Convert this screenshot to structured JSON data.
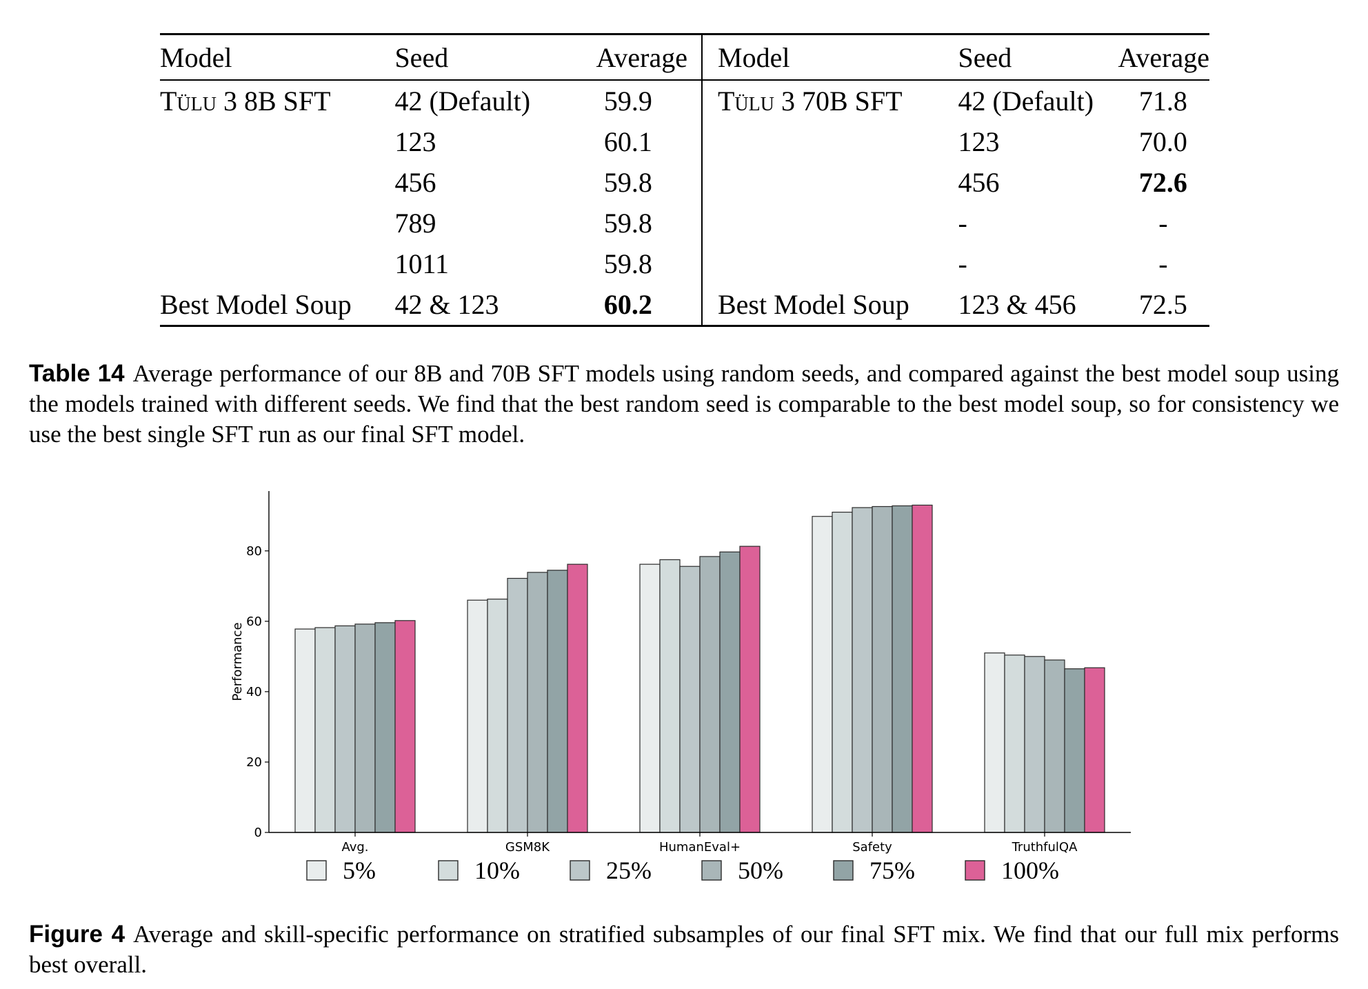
{
  "table": {
    "headers": [
      "Model",
      "Seed",
      "Average",
      "Model",
      "Seed",
      "Average"
    ],
    "rows": [
      [
        "Tülu 3 8B SFT",
        "42 (Default)",
        "59.9",
        "Tülu 3 70B SFT",
        "42 (Default)",
        "71.8"
      ],
      [
        "",
        "123",
        "60.1",
        "",
        "123",
        "70.0"
      ],
      [
        "",
        "456",
        "59.8",
        "",
        "456",
        "72.6"
      ],
      [
        "",
        "789",
        "59.8",
        "",
        "-",
        "-"
      ],
      [
        "",
        "1011",
        "59.8",
        "",
        "-",
        "-"
      ],
      [
        "Best Model Soup",
        "42 & 123",
        "60.2",
        "Best Model Soup",
        "123 & 456",
        "72.5"
      ]
    ]
  },
  "table_caption": {
    "label": "Table 14",
    "text": "Average performance of our 8B and 70B SFT models using random seeds, and compared against the best model soup using the models trained with different seeds. We find that the best random seed is comparable to the best model soup, so for consistency we use the best single SFT run as our final SFT model."
  },
  "figure_caption": {
    "label": "Figure 4",
    "text": "Average and skill-specific performance on stratified subsamples of our final SFT mix. We find that our full mix performs best overall."
  },
  "chart_data": {
    "type": "bar",
    "categories": [
      "Avg.",
      "GSM8K",
      "HumanEval+",
      "Safety",
      "TruthfulQA"
    ],
    "ylabel": "Performance",
    "xlabel": "",
    "ylim": [
      0,
      97
    ],
    "yticks": [
      0,
      20,
      40,
      60,
      80
    ],
    "legend_position": "bottom",
    "series": [
      {
        "name": "5%",
        "color": "#e9eded",
        "values": [
          57.8,
          66.0,
          76.2,
          89.8,
          51.0
        ]
      },
      {
        "name": "10%",
        "color": "#d3dcdc",
        "values": [
          58.2,
          66.3,
          77.5,
          91.0,
          50.4
        ]
      },
      {
        "name": "25%",
        "color": "#bcc7c9",
        "values": [
          58.7,
          72.2,
          75.6,
          92.3,
          50.0
        ]
      },
      {
        "name": "50%",
        "color": "#a9b6b8",
        "values": [
          59.2,
          73.9,
          78.4,
          92.6,
          49.0
        ]
      },
      {
        "name": "75%",
        "color": "#92a4a6",
        "values": [
          59.6,
          74.5,
          79.7,
          92.8,
          46.5
        ]
      },
      {
        "name": "100%",
        "color": "#dc6197",
        "values": [
          60.2,
          76.2,
          81.3,
          93.0,
          46.8
        ]
      }
    ]
  }
}
